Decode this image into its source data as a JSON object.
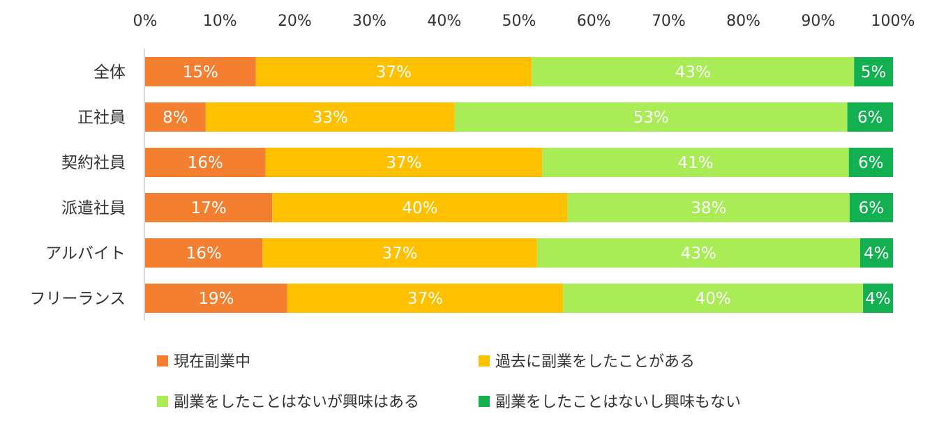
{
  "chart_data": {
    "type": "bar",
    "orientation": "horizontal-stacked-100",
    "title": "",
    "xlim": [
      0,
      100
    ],
    "x_ticks": [
      "0%",
      "10%",
      "20%",
      "30%",
      "40%",
      "50%",
      "60%",
      "70%",
      "80%",
      "90%",
      "100%"
    ],
    "categories": [
      "全体",
      "正社員",
      "契約社員",
      "派遣社員",
      "アルバイト",
      "フリーランス"
    ],
    "series": [
      {
        "name": "現在副業中",
        "color": "#F47F30",
        "values": [
          14.8,
          8.1,
          16.1,
          17.0,
          15.7,
          19.0
        ],
        "labels": [
          "15%",
          "8%",
          "16%",
          "17%",
          "16%",
          "19%"
        ]
      },
      {
        "name": "過去に副業をしたことがある",
        "color": "#FFC000",
        "values": [
          36.9,
          33.3,
          37.0,
          39.5,
          36.7,
          36.9
        ],
        "labels": [
          "37%",
          "33%",
          "37%",
          "40%",
          "37%",
          "37%"
        ]
      },
      {
        "name": "副業をしたことはないが興味はある",
        "color": "#A9EC56",
        "values": [
          43.1,
          52.5,
          41.0,
          37.7,
          43.2,
          40.1
        ],
        "labels": [
          "43%",
          "53%",
          "41%",
          "38%",
          "43%",
          "40%"
        ]
      },
      {
        "name": "副業をしたことはないし興味もない",
        "color": "#12B050",
        "values": [
          5.2,
          6.1,
          5.9,
          5.8,
          4.4,
          4.0
        ],
        "labels": [
          "5%",
          "6%",
          "6%",
          "6%",
          "4%",
          "4%"
        ]
      }
    ],
    "legend_position": "bottom"
  }
}
